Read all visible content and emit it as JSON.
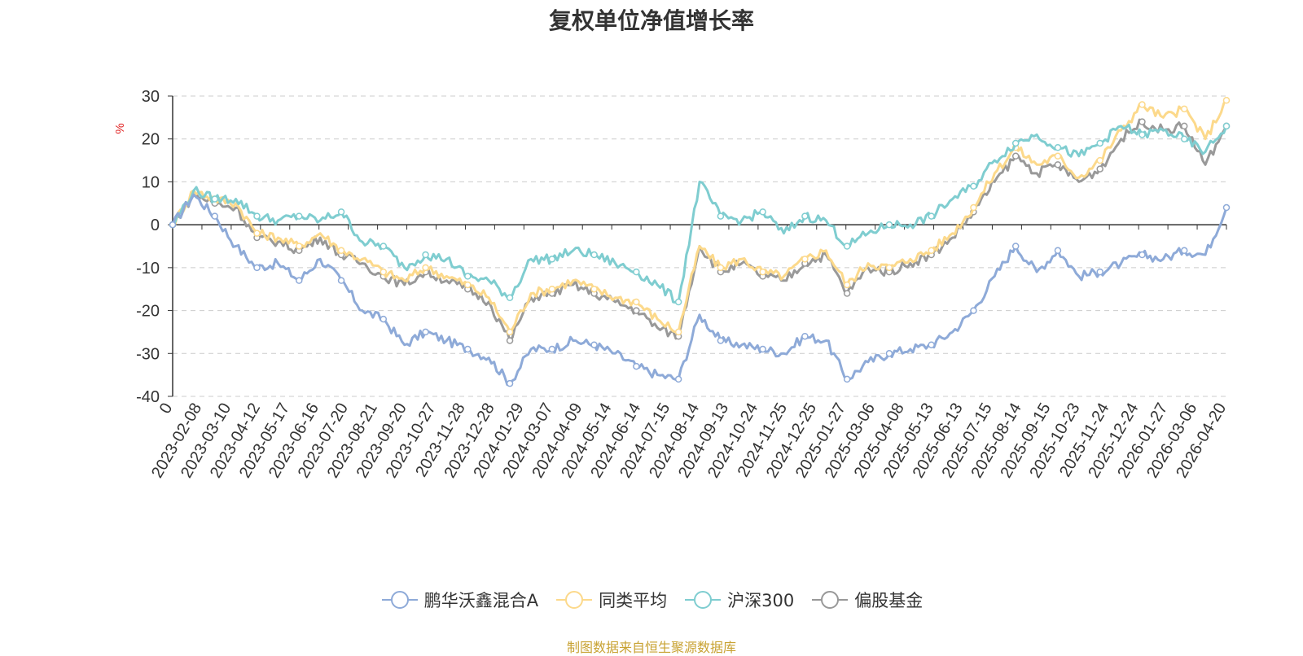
{
  "chart_data": {
    "type": "line",
    "title": "复权单位净值增长率",
    "ylabel": "%",
    "ylim": [
      -40,
      30
    ],
    "y_ticks": [
      30,
      20,
      10,
      0,
      -10,
      -20,
      -30,
      -40
    ],
    "x_ticks": [
      "0",
      "2023-02-08",
      "2023-03-10",
      "2023-04-12",
      "2023-05-17",
      "2023-06-16",
      "2023-07-20",
      "2023-08-21",
      "2023-09-20",
      "2023-10-27",
      "2023-11-28",
      "2023-12-28",
      "2024-01-29",
      "2024-03-07",
      "2024-04-09",
      "2024-05-14",
      "2024-06-14",
      "2024-07-15",
      "2024-08-14",
      "2024-09-13",
      "2024-10-24",
      "2024-11-25",
      "2024-12-25",
      "2025-01-27",
      "2025-03-06",
      "2025-04-08",
      "2025-05-13",
      "2025-06-13",
      "2025-07-15",
      "2025-08-14",
      "2025-09-15",
      "2025-10-23",
      "2025-11-24",
      "2025-12-24",
      "2026-01-27",
      "2026-03-06",
      "2026-04-20"
    ],
    "grid": true,
    "legend_position": "bottom",
    "series": [
      {
        "name": "鹏华沃鑫混合A",
        "color": "#8eaad8",
        "values": [
          0,
          7,
          2,
          -5,
          -10,
          -9,
          -13,
          -8,
          -13,
          -20,
          -22,
          -28,
          -25,
          -27,
          -29,
          -31,
          -37,
          -29,
          -29,
          -27,
          -28,
          -30,
          -33,
          -35,
          -36,
          -21,
          -27,
          -28,
          -29,
          -30,
          -26,
          -27,
          -36,
          -32,
          -30,
          -29,
          -28,
          -25,
          -20,
          -12,
          -5,
          -11,
          -6,
          -12,
          -11,
          -9,
          -7,
          -8,
          -6,
          -7,
          4
        ]
      },
      {
        "name": "同类平均",
        "color": "#fcd98b",
        "values": [
          0,
          8,
          6,
          5,
          -2,
          -3,
          -5,
          -2,
          -6,
          -8,
          -11,
          -13,
          -10,
          -12,
          -14,
          -17,
          -25,
          -16,
          -15,
          -13,
          -15,
          -17,
          -18,
          -22,
          -25,
          -5,
          -10,
          -8,
          -11,
          -12,
          -8,
          -6,
          -14,
          -9,
          -10,
          -8,
          -6,
          -2,
          4,
          12,
          18,
          14,
          16,
          11,
          15,
          22,
          28,
          25,
          27,
          20,
          29
        ]
      },
      {
        "name": "沪深300",
        "color": "#7fcdd0",
        "values": [
          0,
          8,
          6,
          6,
          2,
          1,
          2,
          1,
          3,
          -4,
          -5,
          -10,
          -7,
          -8,
          -12,
          -13,
          -17,
          -8,
          -8,
          -6,
          -7,
          -9,
          -11,
          -14,
          -18,
          10,
          2,
          1,
          3,
          -2,
          2,
          1,
          -5,
          -2,
          0,
          0,
          2,
          6,
          9,
          15,
          19,
          21,
          18,
          16,
          19,
          23,
          21,
          22,
          20,
          17,
          23
        ]
      },
      {
        "name": "偏股基金",
        "color": "#999999",
        "values": [
          0,
          7,
          5,
          4,
          -3,
          -4,
          -6,
          -3,
          -7,
          -9,
          -12,
          -14,
          -11,
          -13,
          -15,
          -18,
          -27,
          -17,
          -16,
          -14,
          -16,
          -18,
          -20,
          -24,
          -26,
          -5,
          -11,
          -9,
          -12,
          -13,
          -9,
          -7,
          -16,
          -10,
          -11,
          -9,
          -7,
          -3,
          3,
          10,
          16,
          12,
          14,
          10,
          13,
          20,
          24,
          22,
          23,
          14,
          23
        ]
      }
    ]
  },
  "source_note": "制图数据来自恒生聚源数据库"
}
